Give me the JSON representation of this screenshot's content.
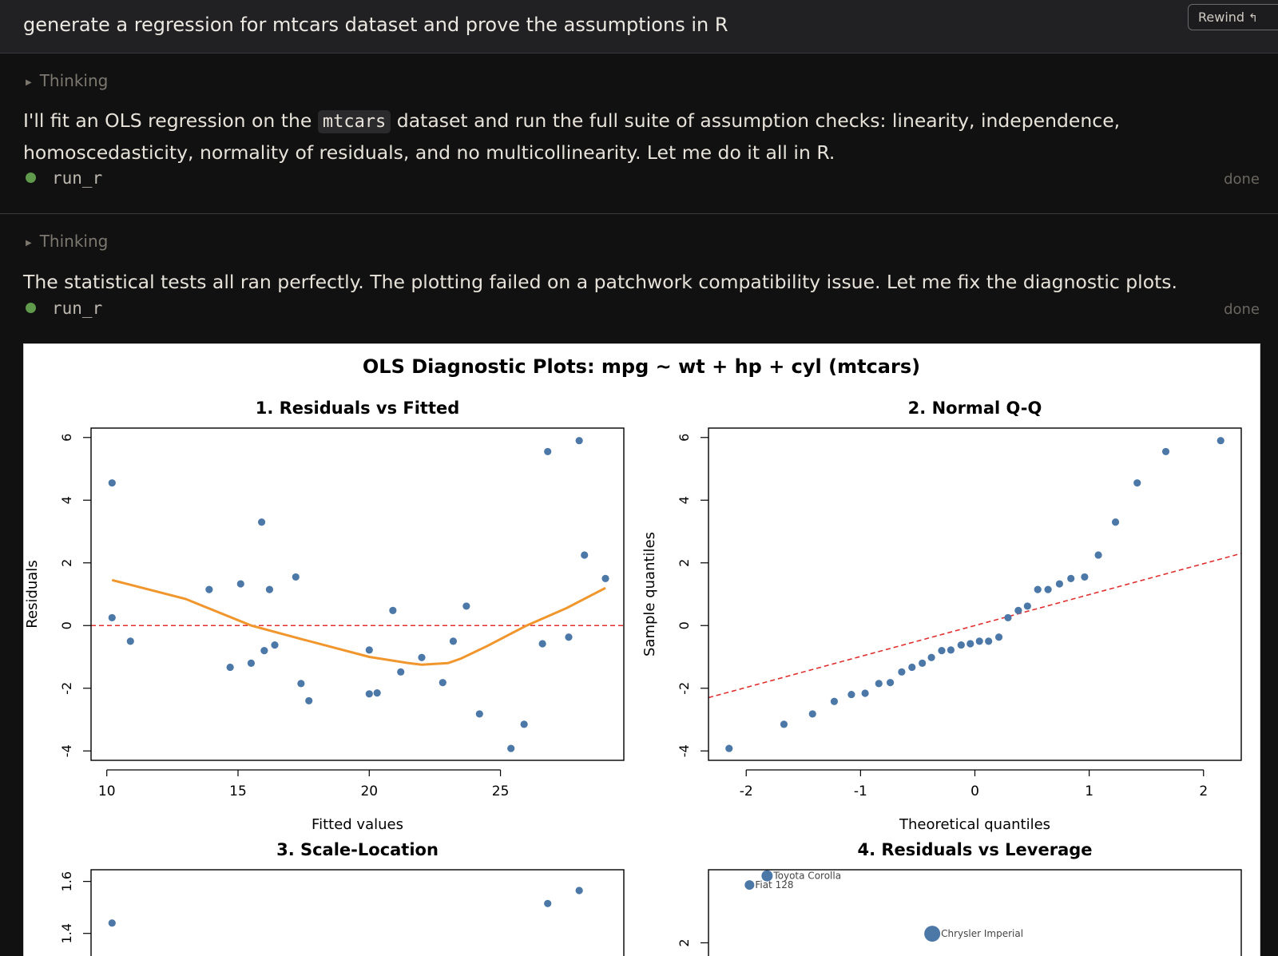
{
  "header": {
    "title": "generate a regression for mtcars dataset and prove the assumptions in R",
    "rewind_label": "Rewind",
    "rewind_icon": "↰"
  },
  "steps": [
    {
      "thinking_label": "Thinking",
      "message_before": "I'll fit an OLS regression on the",
      "message_code": "mtcars",
      "message_after": "dataset and run the full suite of assumption checks: linearity, independence, homoscedasticity, normality of residuals, and no multicollinearity. Let me do it all in R.",
      "tool_name": "run_r",
      "tool_status": "done"
    },
    {
      "thinking_label": "Thinking",
      "message": "The statistical tests all ran perfectly. The plotting failed on a patchwork compatibility issue. Let me fix the diagnostic plots.",
      "tool_name": "run_r",
      "tool_status": "done"
    }
  ],
  "colors": {
    "point": "#4c78a8",
    "smooth": "#f0962c",
    "refline": "#e03030",
    "tool_dot": "#5f9a4d"
  },
  "chart_data": {
    "title": "OLS Diagnostic Plots: mpg ~ wt + hp + cyl (mtcars)",
    "panels": [
      {
        "type": "scatter",
        "title": "1. Residuals vs Fitted",
        "xlabel": "Fitted values",
        "ylabel": "Residuals",
        "xlim": [
          9.4,
          29.7
        ],
        "ylim": [
          -4.3,
          6.3
        ],
        "xticks": [
          10,
          15,
          20,
          25
        ],
        "yticks": [
          -4,
          -2,
          0,
          2,
          4,
          6
        ],
        "reference_line": {
          "type": "horizontal",
          "y": 0,
          "style": "dashed"
        },
        "points": [
          [
            10.2,
            4.55
          ],
          [
            10.2,
            0.25
          ],
          [
            10.9,
            -0.5
          ],
          [
            13.9,
            1.15
          ],
          [
            14.7,
            -1.33
          ],
          [
            15.1,
            1.33
          ],
          [
            15.5,
            -1.2
          ],
          [
            15.9,
            3.3
          ],
          [
            16.0,
            -0.8
          ],
          [
            16.2,
            1.15
          ],
          [
            16.4,
            -0.62
          ],
          [
            17.2,
            1.55
          ],
          [
            17.4,
            -1.85
          ],
          [
            17.7,
            -2.4
          ],
          [
            20.0,
            -0.78
          ],
          [
            20.0,
            -2.18
          ],
          [
            20.3,
            -2.15
          ],
          [
            20.9,
            0.48
          ],
          [
            21.2,
            -1.48
          ],
          [
            22.0,
            -1.02
          ],
          [
            22.8,
            -1.82
          ],
          [
            23.2,
            -0.5
          ],
          [
            23.7,
            0.62
          ],
          [
            24.2,
            -2.82
          ],
          [
            25.4,
            -3.92
          ],
          [
            25.9,
            -3.15
          ],
          [
            26.6,
            -0.58
          ],
          [
            26.8,
            5.55
          ],
          [
            27.6,
            -0.37
          ],
          [
            28.0,
            5.9
          ],
          [
            28.2,
            2.25
          ],
          [
            29.0,
            1.5
          ]
        ],
        "smooth": [
          [
            10.2,
            1.45
          ],
          [
            13.0,
            0.85
          ],
          [
            15.5,
            0.0
          ],
          [
            17.5,
            -0.45
          ],
          [
            20.0,
            -1.0
          ],
          [
            21.5,
            -1.2
          ],
          [
            22.0,
            -1.25
          ],
          [
            23.0,
            -1.2
          ],
          [
            23.5,
            -1.05
          ],
          [
            24.5,
            -0.65
          ],
          [
            26.0,
            0.0
          ],
          [
            27.5,
            0.55
          ],
          [
            29.0,
            1.2
          ]
        ]
      },
      {
        "type": "scatter",
        "title": "2. Normal Q-Q",
        "xlabel": "Theoretical quantiles",
        "ylabel": "Sample quantiles",
        "xlim": [
          -2.33,
          2.33
        ],
        "ylim": [
          -4.3,
          6.3
        ],
        "xticks": [
          -2,
          -1,
          0,
          1,
          2
        ],
        "yticks": [
          -4,
          -2,
          0,
          2,
          4,
          6
        ],
        "reference_line": {
          "type": "qqline",
          "points": [
            [
              -2.33,
              -2.3
            ],
            [
              2.33,
              2.3
            ]
          ],
          "style": "dashed"
        },
        "points": [
          [
            -2.15,
            -3.92
          ],
          [
            -1.67,
            -3.15
          ],
          [
            -1.42,
            -2.82
          ],
          [
            -1.23,
            -2.42
          ],
          [
            -1.08,
            -2.2
          ],
          [
            -0.96,
            -2.16
          ],
          [
            -0.84,
            -1.85
          ],
          [
            -0.74,
            -1.82
          ],
          [
            -0.64,
            -1.48
          ],
          [
            -0.55,
            -1.33
          ],
          [
            -0.46,
            -1.2
          ],
          [
            -0.38,
            -1.02
          ],
          [
            -0.29,
            -0.8
          ],
          [
            -0.21,
            -0.78
          ],
          [
            -0.12,
            -0.62
          ],
          [
            -0.04,
            -0.58
          ],
          [
            0.04,
            -0.5
          ],
          [
            0.12,
            -0.5
          ],
          [
            0.21,
            -0.37
          ],
          [
            0.29,
            0.25
          ],
          [
            0.38,
            0.48
          ],
          [
            0.46,
            0.62
          ],
          [
            0.55,
            1.15
          ],
          [
            0.64,
            1.15
          ],
          [
            0.74,
            1.33
          ],
          [
            0.84,
            1.5
          ],
          [
            0.96,
            1.55
          ],
          [
            1.08,
            2.25
          ],
          [
            1.23,
            3.3
          ],
          [
            1.42,
            4.55
          ],
          [
            1.67,
            5.55
          ],
          [
            2.15,
            5.9
          ]
        ]
      },
      {
        "type": "scatter",
        "title": "3. Scale-Location",
        "yticks": [
          1.4,
          1.6
        ],
        "ylim": [
          1.27,
          1.645
        ],
        "xlim": [
          9.4,
          29.7
        ],
        "points": [
          [
            10.2,
            1.44
          ],
          [
            26.8,
            1.515
          ],
          [
            28.0,
            1.565
          ]
        ]
      },
      {
        "type": "scatter",
        "title": "4. Residuals vs Leverage",
        "yticks": [
          2
        ],
        "ylim": [
          1.6,
          3.2
        ],
        "xlim": [
          0,
          1
        ],
        "points": [
          {
            "x": 0.077,
            "y": 2.95,
            "size": 6,
            "label": "Fiat 128"
          },
          {
            "x": 0.11,
            "y": 3.1,
            "size": 7,
            "label": "Toyota Corolla"
          },
          {
            "x": 0.42,
            "y": 2.15,
            "size": 10,
            "label": "Chrysler Imperial"
          }
        ]
      }
    ]
  }
}
